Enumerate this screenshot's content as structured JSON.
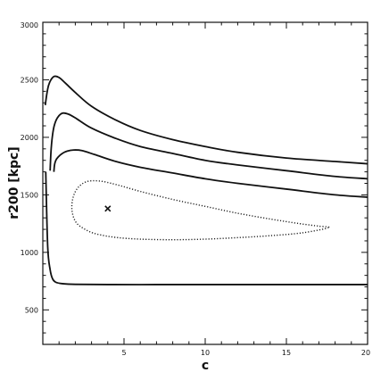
{
  "chart_data": {
    "type": "line",
    "title": "",
    "xlabel": "c",
    "ylabel": "r200 [kpc]",
    "xlim": [
      0,
      20
    ],
    "ylim": [
      200,
      3000
    ],
    "x_ticks": [
      5,
      10,
      15,
      20
    ],
    "y_ticks": [
      500,
      1000,
      1500,
      2000,
      2500,
      3000
    ],
    "x_tick_labels": [
      "5",
      "10",
      "15",
      "20"
    ],
    "y_tick_labels": [
      "500",
      "1000",
      "1500",
      "2000",
      "2500",
      "3000"
    ],
    "grid": false,
    "legend": "none",
    "best_fit": {
      "x": 4,
      "y": 1380,
      "symbol": "×"
    },
    "series": [
      {
        "style": "dotted",
        "closed": true,
        "x": [
          17.6,
          16.0,
          14.0,
          12.0,
          10.0,
          8.0,
          6.0,
          4.5,
          3.3,
          2.6,
          2.05,
          1.8,
          1.85,
          2.15,
          2.7,
          3.5,
          4.5,
          6.0,
          8.0,
          10.0,
          12.0,
          14.0,
          15.8,
          17.0,
          17.6
        ],
        "y": [
          1215,
          1170,
          1145,
          1128,
          1115,
          1110,
          1115,
          1130,
          1160,
          1200,
          1260,
          1360,
          1470,
          1560,
          1615,
          1620,
          1590,
          1530,
          1460,
          1400,
          1340,
          1290,
          1250,
          1228,
          1215
        ]
      },
      {
        "style": "solid",
        "closed": false,
        "x": [
          0.68,
          0.72,
          0.8,
          0.95,
          1.2,
          1.5,
          1.9,
          2.4,
          3.2,
          4.5,
          6.0,
          8.0,
          10.0,
          12.0,
          15.0,
          18.0,
          20.0
        ],
        "y": [
          1700,
          1760,
          1800,
          1830,
          1860,
          1880,
          1890,
          1885,
          1850,
          1790,
          1740,
          1690,
          1640,
          1600,
          1550,
          1500,
          1480
        ]
      },
      {
        "style": "solid",
        "closed": false,
        "x": [
          0.45,
          0.5,
          0.58,
          0.7,
          0.9,
          1.2,
          1.6,
          2.1,
          3.0,
          4.5,
          6.0,
          8.0,
          10.0,
          12.0,
          15.0,
          18.0,
          20.0
        ],
        "y": [
          1710,
          1870,
          2000,
          2100,
          2170,
          2210,
          2200,
          2160,
          2080,
          1990,
          1920,
          1860,
          1800,
          1760,
          1710,
          1660,
          1640
        ]
      },
      {
        "style": "solid",
        "closed": false,
        "x": [
          0.15,
          0.25,
          0.35,
          0.5,
          0.7,
          1.0,
          1.4,
          2.0,
          3.0,
          4.5,
          6.0,
          8.0,
          10.0,
          12.0,
          15.0,
          18.0,
          20.0
        ],
        "y": [
          2280,
          2380,
          2450,
          2500,
          2530,
          2520,
          2470,
          2390,
          2270,
          2150,
          2060,
          1980,
          1920,
          1870,
          1820,
          1790,
          1770
        ]
      },
      {
        "style": "solid",
        "closed": false,
        "x": [
          0.18,
          0.3,
          0.45,
          0.6,
          0.8,
          1.2,
          2.0,
          4.0,
          7.0,
          10.0,
          15.0,
          20.0
        ],
        "y": [
          1700,
          1050,
          850,
          770,
          740,
          728,
          722,
          720,
          720,
          720,
          720,
          720
        ]
      }
    ]
  }
}
